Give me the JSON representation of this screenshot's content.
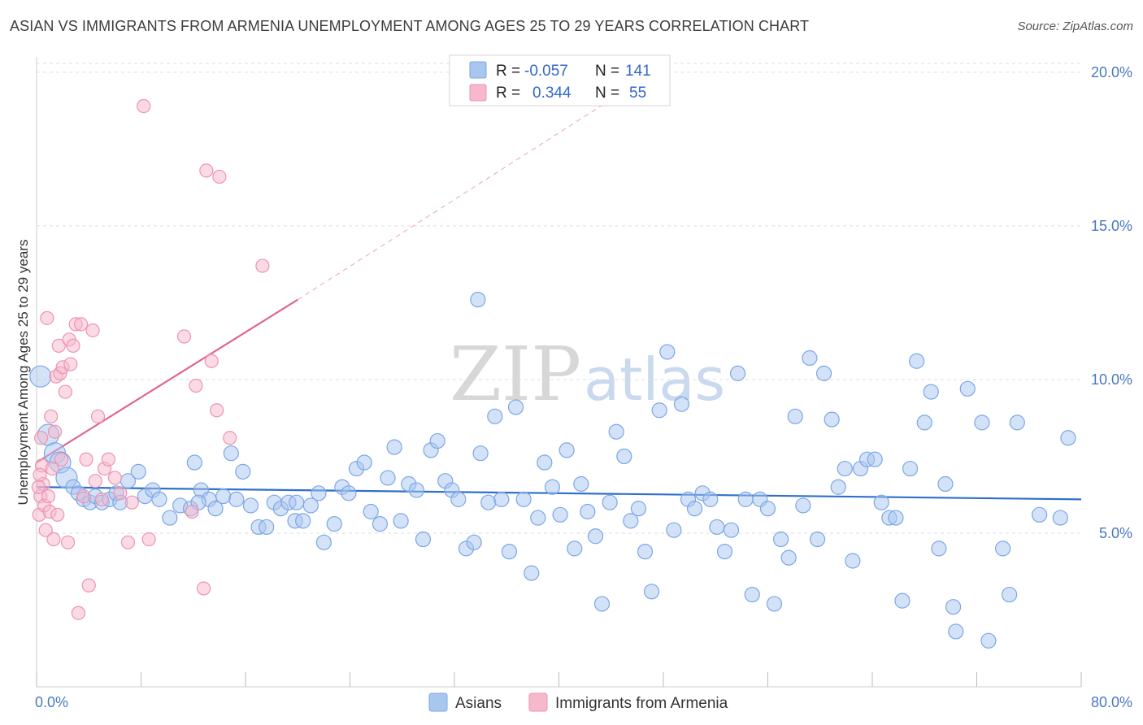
{
  "title": "ASIAN VS IMMIGRANTS FROM ARMENIA UNEMPLOYMENT AMONG AGES 25 TO 29 YEARS CORRELATION CHART",
  "source": "Source: ZipAtlas.com",
  "watermark": {
    "zip": "ZIP",
    "atlas": "atlas"
  },
  "legend_top": [
    {
      "swatch": "#a9c6ef",
      "r_label": "R =",
      "r_value": "-0.057",
      "n_label": "N =",
      "n_value": "141"
    },
    {
      "swatch": "#f6b8cb",
      "r_label": "R =",
      "r_value": "0.344",
      "n_label": "N =",
      "n_value": "55"
    }
  ],
  "chart_data": {
    "type": "scatter",
    "ylabel": "Unemployment Among Ages 25 to 29 years",
    "xlim": [
      0,
      80
    ],
    "ylim": [
      0,
      20.5
    ],
    "x_tick_labels": {
      "0": "0.0%",
      "80": "80.0%"
    },
    "y_ticks": [
      5,
      10,
      15,
      20
    ],
    "y_tick_labels": [
      "5.0%",
      "10.0%",
      "15.0%",
      "20.0%"
    ],
    "grid": "horizontal-dashed",
    "series": [
      {
        "name": "Asians",
        "color": "#7aa7e6",
        "fill": "#a9c6ef",
        "trend": {
          "x": [
            0,
            80
          ],
          "y": [
            6.5,
            6.1
          ],
          "color": "#2f6fcc"
        },
        "points": [
          [
            0.3,
            10.1
          ],
          [
            0.9,
            8.2
          ],
          [
            1.4,
            7.6
          ],
          [
            1.8,
            7.3
          ],
          [
            2.3,
            6.8
          ],
          [
            2.8,
            6.5
          ],
          [
            3.2,
            6.3
          ],
          [
            3.6,
            6.1
          ],
          [
            4.1,
            6.0
          ],
          [
            4.5,
            6.2
          ],
          [
            5.0,
            6.0
          ],
          [
            5.6,
            6.1
          ],
          [
            6.1,
            6.3
          ],
          [
            7.0,
            6.7
          ],
          [
            7.8,
            7.0
          ],
          [
            8.3,
            6.2
          ],
          [
            8.9,
            6.4
          ],
          [
            9.4,
            6.1
          ],
          [
            10.2,
            5.5
          ],
          [
            11.0,
            5.9
          ],
          [
            11.8,
            5.8
          ],
          [
            12.1,
            7.3
          ],
          [
            12.6,
            6.4
          ],
          [
            13.2,
            6.1
          ],
          [
            13.7,
            5.8
          ],
          [
            14.3,
            6.2
          ],
          [
            14.9,
            7.6
          ],
          [
            15.3,
            6.1
          ],
          [
            15.8,
            7.0
          ],
          [
            16.4,
            5.9
          ],
          [
            17.0,
            5.2
          ],
          [
            17.6,
            5.2
          ],
          [
            18.2,
            6.0
          ],
          [
            18.7,
            5.8
          ],
          [
            19.3,
            6.0
          ],
          [
            19.8,
            5.4
          ],
          [
            20.4,
            5.4
          ],
          [
            21.0,
            5.9
          ],
          [
            21.6,
            6.3
          ],
          [
            22.0,
            4.7
          ],
          [
            22.8,
            5.3
          ],
          [
            23.4,
            6.5
          ],
          [
            23.9,
            6.3
          ],
          [
            24.5,
            7.1
          ],
          [
            25.1,
            7.3
          ],
          [
            25.6,
            5.7
          ],
          [
            26.3,
            5.3
          ],
          [
            26.9,
            6.8
          ],
          [
            27.4,
            7.8
          ],
          [
            27.9,
            5.4
          ],
          [
            28.5,
            6.6
          ],
          [
            29.1,
            6.4
          ],
          [
            29.6,
            4.8
          ],
          [
            30.2,
            7.7
          ],
          [
            30.7,
            8.0
          ],
          [
            31.3,
            6.7
          ],
          [
            31.8,
            6.4
          ],
          [
            32.3,
            6.1
          ],
          [
            32.9,
            4.5
          ],
          [
            33.5,
            4.7
          ],
          [
            33.8,
            12.6
          ],
          [
            34.0,
            7.6
          ],
          [
            34.6,
            6.0
          ],
          [
            35.1,
            8.8
          ],
          [
            35.6,
            6.1
          ],
          [
            36.2,
            4.4
          ],
          [
            36.7,
            9.1
          ],
          [
            37.3,
            6.1
          ],
          [
            37.9,
            3.7
          ],
          [
            38.4,
            5.5
          ],
          [
            38.9,
            7.3
          ],
          [
            39.5,
            6.5
          ],
          [
            40.1,
            5.6
          ],
          [
            40.6,
            7.7
          ],
          [
            41.2,
            4.5
          ],
          [
            41.7,
            6.6
          ],
          [
            42.2,
            5.7
          ],
          [
            42.8,
            4.9
          ],
          [
            43.3,
            2.7
          ],
          [
            43.9,
            6.0
          ],
          [
            44.4,
            8.3
          ],
          [
            45.0,
            7.5
          ],
          [
            45.5,
            5.4
          ],
          [
            46.1,
            5.8
          ],
          [
            46.6,
            4.4
          ],
          [
            47.1,
            3.1
          ],
          [
            47.7,
            9.0
          ],
          [
            48.3,
            10.9
          ],
          [
            48.8,
            5.1
          ],
          [
            49.4,
            9.2
          ],
          [
            49.9,
            6.1
          ],
          [
            50.4,
            5.8
          ],
          [
            51.0,
            6.3
          ],
          [
            51.6,
            6.1
          ],
          [
            52.1,
            5.2
          ],
          [
            52.7,
            4.4
          ],
          [
            53.2,
            5.1
          ],
          [
            53.7,
            10.2
          ],
          [
            54.3,
            6.1
          ],
          [
            54.8,
            3.0
          ],
          [
            55.4,
            6.1
          ],
          [
            56.0,
            5.8
          ],
          [
            56.5,
            2.7
          ],
          [
            57.0,
            4.8
          ],
          [
            57.6,
            4.2
          ],
          [
            58.1,
            8.8
          ],
          [
            58.7,
            5.9
          ],
          [
            59.2,
            10.7
          ],
          [
            59.8,
            4.8
          ],
          [
            60.3,
            10.2
          ],
          [
            60.9,
            8.7
          ],
          [
            61.4,
            6.5
          ],
          [
            61.9,
            7.1
          ],
          [
            62.5,
            4.1
          ],
          [
            63.1,
            7.1
          ],
          [
            63.6,
            7.4
          ],
          [
            64.2,
            7.4
          ],
          [
            64.7,
            6.0
          ],
          [
            65.3,
            5.5
          ],
          [
            65.8,
            5.5
          ],
          [
            66.3,
            2.8
          ],
          [
            66.9,
            7.1
          ],
          [
            67.4,
            10.6
          ],
          [
            68.0,
            8.6
          ],
          [
            68.5,
            9.6
          ],
          [
            69.1,
            4.5
          ],
          [
            69.6,
            6.6
          ],
          [
            70.2,
            2.6
          ],
          [
            70.4,
            1.8
          ],
          [
            71.3,
            9.7
          ],
          [
            72.4,
            8.6
          ],
          [
            72.9,
            1.5
          ],
          [
            74.0,
            4.5
          ],
          [
            74.5,
            3.0
          ],
          [
            75.1,
            8.6
          ],
          [
            76.8,
            5.6
          ],
          [
            78.4,
            5.5
          ],
          [
            79.0,
            8.1
          ],
          [
            19.9,
            6.0
          ],
          [
            12.4,
            6.0
          ],
          [
            6.4,
            6.0
          ]
        ]
      },
      {
        "name": "Immigrants from Armenia",
        "color": "#ee93b0",
        "fill": "#f6b8cb",
        "trend": {
          "x": [
            0,
            20
          ],
          "y": [
            7.3,
            12.6
          ],
          "color": "#e0668f",
          "dash_to": [
            48,
            20.2
          ]
        },
        "points": [
          [
            0.2,
            5.6
          ],
          [
            0.3,
            6.2
          ],
          [
            0.4,
            7.2
          ],
          [
            0.5,
            6.6
          ],
          [
            0.6,
            5.9
          ],
          [
            0.7,
            5.1
          ],
          [
            0.8,
            12.0
          ],
          [
            0.9,
            6.2
          ],
          [
            1.0,
            5.7
          ],
          [
            1.1,
            8.8
          ],
          [
            1.2,
            7.1
          ],
          [
            1.3,
            4.8
          ],
          [
            1.4,
            8.3
          ],
          [
            1.5,
            10.1
          ],
          [
            1.6,
            5.6
          ],
          [
            1.7,
            11.1
          ],
          [
            1.8,
            10.2
          ],
          [
            1.9,
            7.4
          ],
          [
            2.0,
            10.4
          ],
          [
            2.2,
            9.6
          ],
          [
            2.4,
            4.7
          ],
          [
            2.5,
            11.3
          ],
          [
            2.6,
            10.5
          ],
          [
            2.8,
            11.1
          ],
          [
            3.0,
            11.8
          ],
          [
            3.2,
            2.4
          ],
          [
            3.4,
            11.8
          ],
          [
            3.6,
            6.2
          ],
          [
            3.8,
            7.4
          ],
          [
            4.0,
            3.3
          ],
          [
            4.3,
            11.6
          ],
          [
            4.5,
            6.7
          ],
          [
            4.7,
            8.8
          ],
          [
            5.0,
            6.1
          ],
          [
            5.2,
            7.1
          ],
          [
            5.5,
            7.4
          ],
          [
            6.0,
            6.8
          ],
          [
            6.4,
            6.3
          ],
          [
            7.0,
            4.7
          ],
          [
            7.3,
            6.0
          ],
          [
            8.2,
            18.9
          ],
          [
            8.6,
            4.8
          ],
          [
            11.3,
            11.4
          ],
          [
            11.9,
            5.7
          ],
          [
            12.2,
            9.8
          ],
          [
            12.8,
            3.2
          ],
          [
            13.0,
            16.8
          ],
          [
            13.4,
            10.6
          ],
          [
            13.8,
            9.0
          ],
          [
            14.0,
            16.6
          ],
          [
            14.8,
            8.1
          ],
          [
            17.3,
            13.7
          ],
          [
            0.15,
            6.5
          ],
          [
            0.25,
            6.9
          ],
          [
            0.35,
            8.1
          ]
        ]
      }
    ]
  },
  "legend_bottom": [
    {
      "label": "Asians",
      "swatch": "#a9c6ef"
    },
    {
      "label": "Immigrants from Armenia",
      "swatch": "#f6b8cb"
    }
  ]
}
